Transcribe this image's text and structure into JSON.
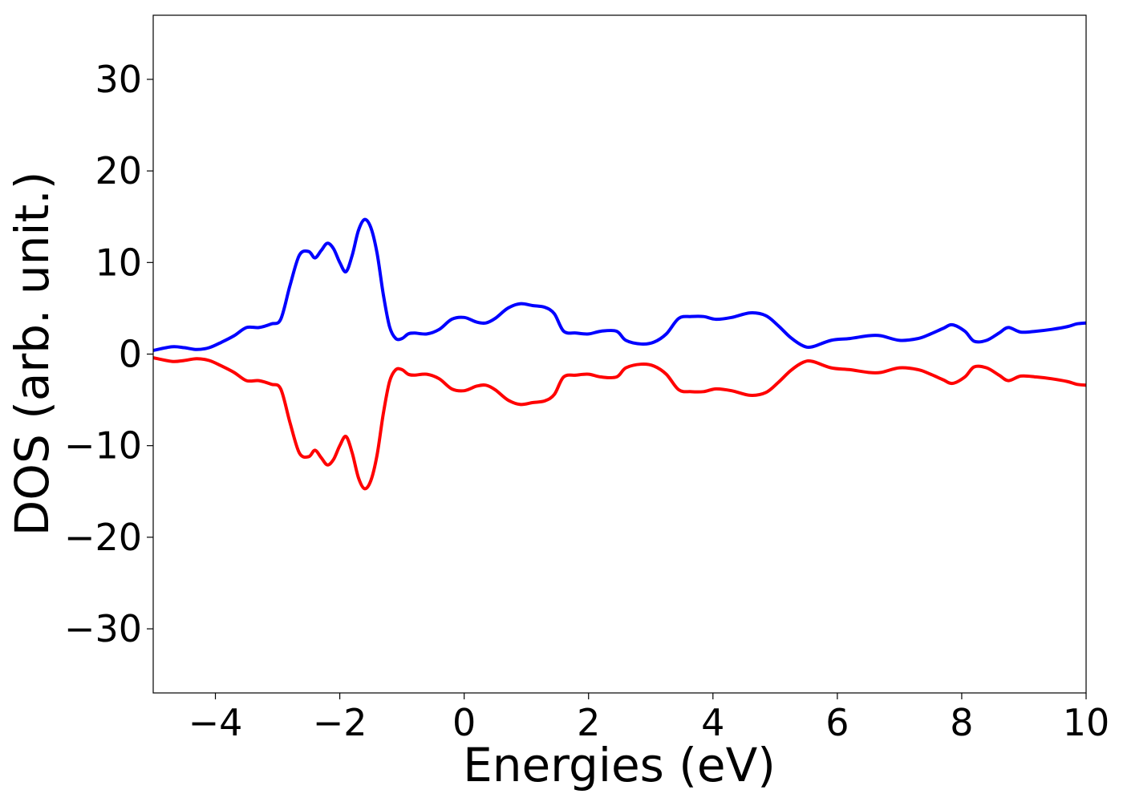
{
  "chart_data": {
    "type": "line",
    "title": "",
    "xlabel": "Energies (eV)",
    "ylabel": "DOS (arb. unit.)",
    "xlim": [
      -5,
      10
    ],
    "ylim": [
      -37,
      37
    ],
    "xticks": [
      -4,
      -2,
      0,
      2,
      4,
      6,
      8,
      10
    ],
    "xtick_labels": [
      "−4",
      "−2",
      "0",
      "2",
      "4",
      "6",
      "8",
      "10"
    ],
    "yticks": [
      -30,
      -20,
      -10,
      0,
      10,
      20,
      30
    ],
    "ytick_labels": [
      "−30",
      "−20",
      "−10",
      "0",
      "10",
      "20",
      "30"
    ],
    "grid": false,
    "legend": "none",
    "series": [
      {
        "color": "#0000ff",
        "x": [
          -5.0,
          -4.7,
          -4.5,
          -4.3,
          -4.1,
          -3.9,
          -3.7,
          -3.5,
          -3.3,
          -3.1,
          -2.95,
          -2.8,
          -2.65,
          -2.5,
          -2.4,
          -2.3,
          -2.2,
          -2.1,
          -2.0,
          -1.9,
          -1.8,
          -1.7,
          -1.6,
          -1.5,
          -1.4,
          -1.3,
          -1.2,
          -1.1,
          -1.0,
          -0.9,
          -0.8,
          -0.6,
          -0.4,
          -0.2,
          0.0,
          0.2,
          0.35,
          0.5,
          0.7,
          0.9,
          1.1,
          1.3,
          1.45,
          1.6,
          1.8,
          2.0,
          2.2,
          2.45,
          2.6,
          2.85,
          3.05,
          3.25,
          3.45,
          3.65,
          3.85,
          4.05,
          4.3,
          4.6,
          4.85,
          5.05,
          5.25,
          5.45,
          5.6,
          5.9,
          6.2,
          6.5,
          6.7,
          7.0,
          7.3,
          7.5,
          7.7,
          7.85,
          8.05,
          8.2,
          8.4,
          8.6,
          8.75,
          8.95,
          9.2,
          9.45,
          9.7,
          9.85,
          10.0
        ],
        "y": [
          0.4,
          0.8,
          0.7,
          0.5,
          0.7,
          1.3,
          2.0,
          2.9,
          2.9,
          3.3,
          3.8,
          7.5,
          10.8,
          11.2,
          10.5,
          11.3,
          12.1,
          11.5,
          10.0,
          9.0,
          10.8,
          13.5,
          14.7,
          13.8,
          11.0,
          6.5,
          3.0,
          1.7,
          1.7,
          2.2,
          2.3,
          2.2,
          2.7,
          3.8,
          4.0,
          3.5,
          3.4,
          3.9,
          5.0,
          5.5,
          5.3,
          5.1,
          4.4,
          2.5,
          2.3,
          2.2,
          2.5,
          2.5,
          1.5,
          1.1,
          1.3,
          2.2,
          3.9,
          4.1,
          4.1,
          3.8,
          4.0,
          4.5,
          4.2,
          3.1,
          1.8,
          0.9,
          0.8,
          1.5,
          1.7,
          2.0,
          2.0,
          1.5,
          1.7,
          2.2,
          2.8,
          3.2,
          2.5,
          1.4,
          1.5,
          2.3,
          2.9,
          2.4,
          2.5,
          2.7,
          3.0,
          3.3,
          3.4
        ]
      },
      {
        "color": "#ff0000",
        "x": [
          -5.0,
          -4.7,
          -4.5,
          -4.3,
          -4.1,
          -3.9,
          -3.7,
          -3.5,
          -3.3,
          -3.1,
          -2.95,
          -2.8,
          -2.65,
          -2.5,
          -2.4,
          -2.3,
          -2.2,
          -2.1,
          -2.0,
          -1.9,
          -1.8,
          -1.7,
          -1.6,
          -1.5,
          -1.4,
          -1.3,
          -1.2,
          -1.1,
          -1.0,
          -0.9,
          -0.8,
          -0.6,
          -0.4,
          -0.2,
          0.0,
          0.2,
          0.35,
          0.5,
          0.7,
          0.9,
          1.1,
          1.3,
          1.45,
          1.6,
          1.8,
          2.0,
          2.2,
          2.45,
          2.6,
          2.85,
          3.05,
          3.25,
          3.45,
          3.65,
          3.85,
          4.05,
          4.3,
          4.6,
          4.85,
          5.05,
          5.25,
          5.45,
          5.6,
          5.9,
          6.2,
          6.5,
          6.7,
          7.0,
          7.3,
          7.5,
          7.7,
          7.85,
          8.05,
          8.2,
          8.4,
          8.6,
          8.75,
          8.95,
          9.2,
          9.45,
          9.7,
          9.85,
          10.0
        ],
        "y": [
          -0.4,
          -0.8,
          -0.7,
          -0.5,
          -0.7,
          -1.3,
          -2.0,
          -2.9,
          -2.9,
          -3.3,
          -3.8,
          -7.5,
          -10.8,
          -11.2,
          -10.5,
          -11.3,
          -12.1,
          -11.5,
          -10.0,
          -9.0,
          -10.8,
          -13.5,
          -14.7,
          -13.8,
          -11.0,
          -6.5,
          -3.0,
          -1.7,
          -1.7,
          -2.2,
          -2.3,
          -2.2,
          -2.7,
          -3.8,
          -4.0,
          -3.5,
          -3.4,
          -3.9,
          -5.0,
          -5.5,
          -5.3,
          -5.1,
          -4.4,
          -2.5,
          -2.3,
          -2.2,
          -2.5,
          -2.5,
          -1.5,
          -1.1,
          -1.3,
          -2.2,
          -3.9,
          -4.1,
          -4.1,
          -3.8,
          -4.0,
          -4.5,
          -4.2,
          -3.1,
          -1.8,
          -0.9,
          -0.8,
          -1.5,
          -1.7,
          -2.0,
          -2.0,
          -1.5,
          -1.7,
          -2.2,
          -2.8,
          -3.2,
          -2.5,
          -1.4,
          -1.5,
          -2.3,
          -2.9,
          -2.4,
          -2.5,
          -2.7,
          -3.0,
          -3.3,
          -3.4
        ]
      }
    ]
  }
}
